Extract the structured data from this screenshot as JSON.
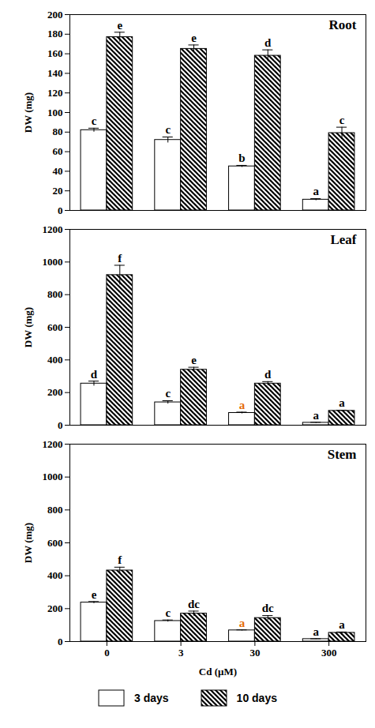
{
  "chart_data": [
    {
      "type": "bar",
      "title": "Root",
      "y_label": "DW (mg)",
      "categories": [
        "0",
        "3",
        "30",
        "300"
      ],
      "ylim": [
        0,
        200
      ],
      "yticks": [
        0,
        20,
        40,
        60,
        80,
        100,
        120,
        140,
        160,
        180,
        200
      ],
      "tick_labels": "y",
      "series": [
        {
          "name": "3 days",
          "color": "#ffffff",
          "marker": "solid",
          "values": [
            82,
            72,
            45,
            11
          ],
          "errors": [
            2,
            3,
            1,
            1
          ],
          "annotations": [
            "c",
            "c",
            "b",
            "a"
          ],
          "annotation_colors": [
            "#000000",
            "#000000",
            "#000000",
            "#000000"
          ]
        },
        {
          "name": "10 days",
          "color": "#000000",
          "marker": "hatch",
          "values": [
            177,
            165,
            158,
            79
          ],
          "errors": [
            5,
            4,
            6,
            6
          ],
          "annotations": [
            "e",
            "e",
            "d",
            "c"
          ],
          "annotation_colors": [
            "#000000",
            "#000000",
            "#000000",
            "#000000"
          ]
        }
      ]
    },
    {
      "type": "bar",
      "title": "Leaf",
      "y_label": "DW (mg)",
      "categories": [
        "0",
        "3",
        "30",
        "300"
      ],
      "ylim": [
        0,
        1200
      ],
      "yticks": [
        0,
        200,
        400,
        600,
        800,
        1000,
        1200
      ],
      "tick_labels": "y",
      "series": [
        {
          "name": "3 days",
          "color": "#ffffff",
          "marker": "solid",
          "values": [
            255,
            140,
            75,
            15
          ],
          "errors": [
            15,
            10,
            5,
            3
          ],
          "annotations": [
            "d",
            "c",
            "a",
            "a"
          ],
          "annotation_colors": [
            "#000000",
            "#000000",
            "#e46c0a",
            "#000000"
          ]
        },
        {
          "name": "10 days",
          "color": "#000000",
          "marker": "hatch",
          "values": [
            920,
            340,
            255,
            88
          ],
          "errors": [
            60,
            15,
            12,
            4
          ],
          "annotations": [
            "f",
            "e",
            "d",
            "a"
          ],
          "annotation_colors": [
            "#000000",
            "#000000",
            "#000000",
            "#000000"
          ]
        }
      ]
    },
    {
      "type": "bar",
      "title": "Stem",
      "y_label": "DW (mg)",
      "x_label": "Cd (µM)",
      "categories": [
        "0",
        "3",
        "30",
        "300"
      ],
      "ylim": [
        0,
        1200
      ],
      "yticks": [
        0,
        200,
        400,
        600,
        800,
        1000,
        1200
      ],
      "legend": "bottom",
      "series": [
        {
          "name": "3 days",
          "color": "#ffffff",
          "marker": "solid",
          "values": [
            237,
            125,
            68,
            15
          ],
          "errors": [
            6,
            6,
            3,
            2
          ],
          "annotations": [
            "e",
            "c",
            "a",
            "a"
          ],
          "annotation_colors": [
            "#000000",
            "#000000",
            "#e46c0a",
            "#000000"
          ]
        },
        {
          "name": "10 days",
          "color": "#000000",
          "marker": "hatch",
          "values": [
            432,
            170,
            143,
            53
          ],
          "errors": [
            20,
            15,
            15,
            5
          ],
          "annotations": [
            "f",
            "dc",
            "dc",
            "a"
          ],
          "annotation_colors": [
            "#000000",
            "#000000",
            "#000000",
            "#000000"
          ]
        }
      ]
    }
  ]
}
